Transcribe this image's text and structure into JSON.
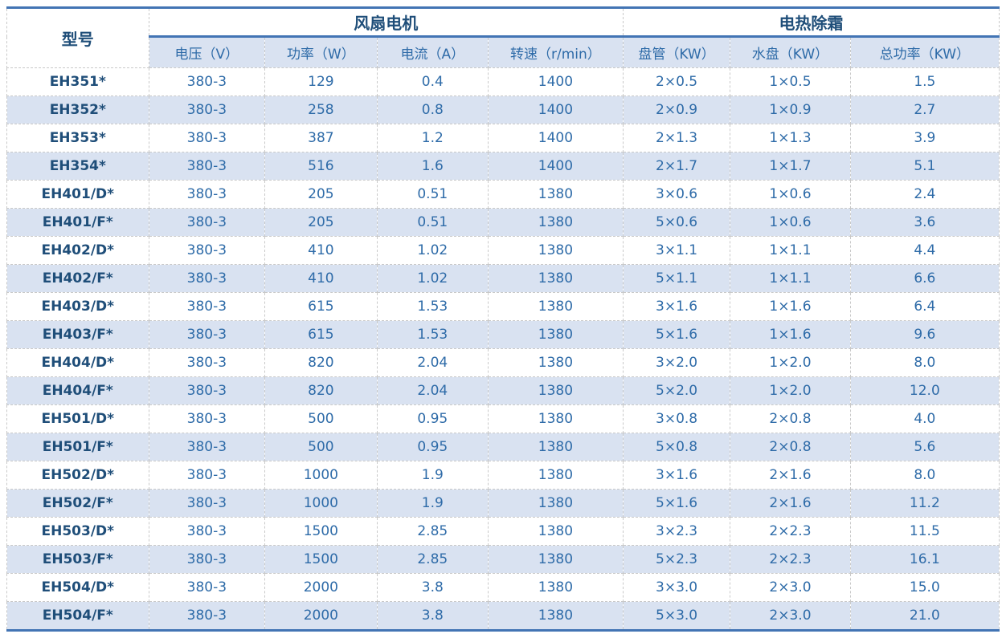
{
  "table": {
    "model_header": "型号",
    "groups": [
      {
        "label": "风扇电机",
        "colspan": 4
      },
      {
        "label": "电热除霜",
        "colspan": 3
      }
    ],
    "sub_headers": [
      "电压（V）",
      "功率（W）",
      "电流（A）",
      "转速（r/min）",
      "盘管（KW）",
      "水盘（KW）",
      "总功率（KW）"
    ],
    "rows": [
      [
        "EH351*",
        "380-3",
        "129",
        "0.4",
        "1400",
        "2×0.5",
        "1×0.5",
        "1.5"
      ],
      [
        "EH352*",
        "380-3",
        "258",
        "0.8",
        "1400",
        "2×0.9",
        "1×0.9",
        "2.7"
      ],
      [
        "EH353*",
        "380-3",
        "387",
        "1.2",
        "1400",
        "2×1.3",
        "1×1.3",
        "3.9"
      ],
      [
        "EH354*",
        "380-3",
        "516",
        "1.6",
        "1400",
        "2×1.7",
        "1×1.7",
        "5.1"
      ],
      [
        "EH401/D*",
        "380-3",
        "205",
        "0.51",
        "1380",
        "3×0.6",
        "1×0.6",
        "2.4"
      ],
      [
        "EH401/F*",
        "380-3",
        "205",
        "0.51",
        "1380",
        "5×0.6",
        "1×0.6",
        "3.6"
      ],
      [
        "EH402/D*",
        "380-3",
        "410",
        "1.02",
        "1380",
        "3×1.1",
        "1×1.1",
        "4.4"
      ],
      [
        "EH402/F*",
        "380-3",
        "410",
        "1.02",
        "1380",
        "5×1.1",
        "1×1.1",
        "6.6"
      ],
      [
        "EH403/D*",
        "380-3",
        "615",
        "1.53",
        "1380",
        "3×1.6",
        "1×1.6",
        "6.4"
      ],
      [
        "EH403/F*",
        "380-3",
        "615",
        "1.53",
        "1380",
        "5×1.6",
        "1×1.6",
        "9.6"
      ],
      [
        "EH404/D*",
        "380-3",
        "820",
        "2.04",
        "1380",
        "3×2.0",
        "1×2.0",
        "8.0"
      ],
      [
        "EH404/F*",
        "380-3",
        "820",
        "2.04",
        "1380",
        "5×2.0",
        "1×2.0",
        "12.0"
      ],
      [
        "EH501/D*",
        "380-3",
        "500",
        "0.95",
        "1380",
        "3×0.8",
        "2×0.8",
        "4.0"
      ],
      [
        "EH501/F*",
        "380-3",
        "500",
        "0.95",
        "1380",
        "5×0.8",
        "2×0.8",
        "5.6"
      ],
      [
        "EH502/D*",
        "380-3",
        "1000",
        "1.9",
        "1380",
        "3×1.6",
        "2×1.6",
        "8.0"
      ],
      [
        "EH502/F*",
        "380-3",
        "1000",
        "1.9",
        "1380",
        "5×1.6",
        "2×1.6",
        "11.2"
      ],
      [
        "EH503/D*",
        "380-3",
        "1500",
        "2.85",
        "1380",
        "3×2.3",
        "2×2.3",
        "11.5"
      ],
      [
        "EH503/F*",
        "380-3",
        "1500",
        "2.85",
        "1380",
        "5×2.3",
        "2×2.3",
        "16.1"
      ],
      [
        "EH504/D*",
        "380-3",
        "2000",
        "3.8",
        "1380",
        "3×3.0",
        "2×3.0",
        "15.0"
      ],
      [
        "EH504/F*",
        "380-3",
        "2000",
        "3.8",
        "1380",
        "5×3.0",
        "2×3.0",
        "21.0"
      ]
    ]
  },
  "colors": {
    "accent_border": "#4274b4",
    "header_fill": "#d9e2f1",
    "alt_row_fill": "#d9e2f1",
    "model_text": "#1f4e79",
    "value_text": "#2e6ba8",
    "cell_border": "#c9c9c9"
  },
  "chart_data": {
    "type": "table",
    "title": "",
    "column_groups": [
      {
        "label": "",
        "span": 1
      },
      {
        "label": "风扇电机",
        "span": 4
      },
      {
        "label": "电热除霜",
        "span": 3
      }
    ],
    "columns": [
      "型号",
      "电压（V）",
      "功率（W）",
      "电流（A）",
      "转速（r/min）",
      "盘管（KW）",
      "水盘（KW）",
      "总功率（KW）"
    ],
    "rows": [
      [
        "EH351*",
        "380-3",
        "129",
        "0.4",
        "1400",
        "2×0.5",
        "1×0.5",
        "1.5"
      ],
      [
        "EH352*",
        "380-3",
        "258",
        "0.8",
        "1400",
        "2×0.9",
        "1×0.9",
        "2.7"
      ],
      [
        "EH353*",
        "380-3",
        "387",
        "1.2",
        "1400",
        "2×1.3",
        "1×1.3",
        "3.9"
      ],
      [
        "EH354*",
        "380-3",
        "516",
        "1.6",
        "1400",
        "2×1.7",
        "1×1.7",
        "5.1"
      ],
      [
        "EH401/D*",
        "380-3",
        "205",
        "0.51",
        "1380",
        "3×0.6",
        "1×0.6",
        "2.4"
      ],
      [
        "EH401/F*",
        "380-3",
        "205",
        "0.51",
        "1380",
        "5×0.6",
        "1×0.6",
        "3.6"
      ],
      [
        "EH402/D*",
        "380-3",
        "410",
        "1.02",
        "1380",
        "3×1.1",
        "1×1.1",
        "4.4"
      ],
      [
        "EH402/F*",
        "380-3",
        "410",
        "1.02",
        "1380",
        "5×1.1",
        "1×1.1",
        "6.6"
      ],
      [
        "EH403/D*",
        "380-3",
        "615",
        "1.53",
        "1380",
        "3×1.6",
        "1×1.6",
        "6.4"
      ],
      [
        "EH403/F*",
        "380-3",
        "615",
        "1.53",
        "1380",
        "5×1.6",
        "1×1.6",
        "9.6"
      ],
      [
        "EH404/D*",
        "380-3",
        "820",
        "2.04",
        "1380",
        "3×2.0",
        "1×2.0",
        "8.0"
      ],
      [
        "EH404/F*",
        "380-3",
        "820",
        "2.04",
        "1380",
        "5×2.0",
        "1×2.0",
        "12.0"
      ],
      [
        "EH501/D*",
        "380-3",
        "500",
        "0.95",
        "1380",
        "3×0.8",
        "2×0.8",
        "4.0"
      ],
      [
        "EH501/F*",
        "380-3",
        "500",
        "0.95",
        "1380",
        "5×0.8",
        "2×0.8",
        "5.6"
      ],
      [
        "EH502/D*",
        "380-3",
        "1000",
        "1.9",
        "1380",
        "3×1.6",
        "2×1.6",
        "8.0"
      ],
      [
        "EH502/F*",
        "380-3",
        "1000",
        "1.9",
        "1380",
        "5×1.6",
        "2×1.6",
        "11.2"
      ],
      [
        "EH503/D*",
        "380-3",
        "1500",
        "2.85",
        "1380",
        "3×2.3",
        "2×2.3",
        "11.5"
      ],
      [
        "EH503/F*",
        "380-3",
        "1500",
        "2.85",
        "1380",
        "5×2.3",
        "2×2.3",
        "16.1"
      ],
      [
        "EH504/D*",
        "380-3",
        "2000",
        "3.8",
        "1380",
        "3×3.0",
        "2×3.0",
        "15.0"
      ],
      [
        "EH504/F*",
        "380-3",
        "2000",
        "3.8",
        "1380",
        "5×3.0",
        "2×3.0",
        "21.0"
      ]
    ],
    "layout_hints": {
      "zebra_striping": true,
      "header_rows": 2,
      "accent_color": "#4274b4"
    }
  }
}
